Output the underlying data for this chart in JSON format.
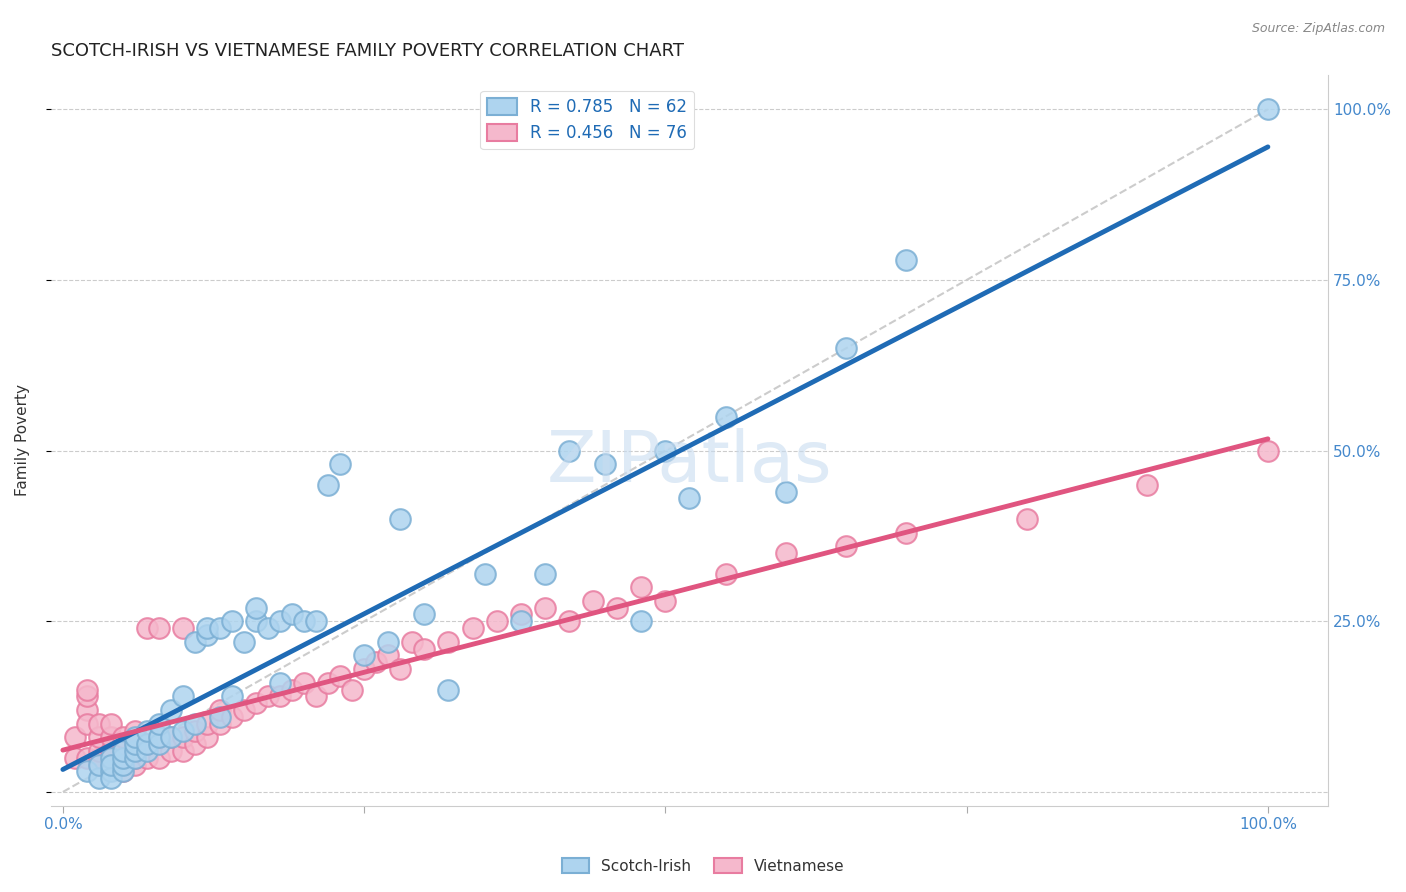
{
  "title": "SCOTCH-IRISH VS VIETNAMESE FAMILY POVERTY CORRELATION CHART",
  "source": "Source: ZipAtlas.com",
  "ylabel": "Family Poverty",
  "xlim": [
    0,
    1
  ],
  "ylim": [
    0,
    1
  ],
  "watermark": "ZIPatlas",
  "scotch_irish_color": "#7BAFD4",
  "scotch_irish_fill": "#AED4EF",
  "vietnamese_color": "#E87CA0",
  "vietnamese_fill": "#F5B8CC",
  "R_scotch": 0.785,
  "N_scotch": 62,
  "R_vietnamese": 0.456,
  "N_vietnamese": 76,
  "scotch_irish_x": [
    0.02,
    0.03,
    0.03,
    0.04,
    0.04,
    0.04,
    0.04,
    0.05,
    0.05,
    0.05,
    0.05,
    0.06,
    0.06,
    0.06,
    0.06,
    0.07,
    0.07,
    0.07,
    0.08,
    0.08,
    0.08,
    0.09,
    0.09,
    0.1,
    0.1,
    0.11,
    0.11,
    0.12,
    0.12,
    0.13,
    0.13,
    0.14,
    0.14,
    0.15,
    0.16,
    0.16,
    0.17,
    0.18,
    0.18,
    0.19,
    0.2,
    0.21,
    0.22,
    0.23,
    0.25,
    0.27,
    0.28,
    0.3,
    0.32,
    0.35,
    0.38,
    0.4,
    0.42,
    0.45,
    0.48,
    0.5,
    0.52,
    0.55,
    0.6,
    0.65,
    0.7,
    1.0
  ],
  "scotch_irish_y": [
    0.03,
    0.02,
    0.04,
    0.03,
    0.05,
    0.02,
    0.04,
    0.03,
    0.04,
    0.05,
    0.06,
    0.05,
    0.06,
    0.07,
    0.08,
    0.06,
    0.07,
    0.09,
    0.07,
    0.08,
    0.1,
    0.08,
    0.12,
    0.09,
    0.14,
    0.1,
    0.22,
    0.23,
    0.24,
    0.11,
    0.24,
    0.14,
    0.25,
    0.22,
    0.25,
    0.27,
    0.24,
    0.25,
    0.16,
    0.26,
    0.25,
    0.25,
    0.45,
    0.48,
    0.2,
    0.22,
    0.4,
    0.26,
    0.15,
    0.32,
    0.25,
    0.32,
    0.5,
    0.48,
    0.25,
    0.5,
    0.43,
    0.55,
    0.44,
    0.65,
    0.78,
    1.0
  ],
  "vietnamese_x": [
    0.01,
    0.01,
    0.02,
    0.02,
    0.02,
    0.02,
    0.02,
    0.03,
    0.03,
    0.03,
    0.03,
    0.03,
    0.04,
    0.04,
    0.04,
    0.04,
    0.04,
    0.05,
    0.05,
    0.05,
    0.05,
    0.06,
    0.06,
    0.06,
    0.06,
    0.07,
    0.07,
    0.07,
    0.08,
    0.08,
    0.08,
    0.09,
    0.09,
    0.1,
    0.1,
    0.1,
    0.11,
    0.11,
    0.12,
    0.12,
    0.13,
    0.13,
    0.14,
    0.15,
    0.16,
    0.17,
    0.18,
    0.19,
    0.2,
    0.21,
    0.22,
    0.23,
    0.24,
    0.25,
    0.26,
    0.27,
    0.28,
    0.29,
    0.3,
    0.32,
    0.34,
    0.36,
    0.38,
    0.4,
    0.42,
    0.44,
    0.46,
    0.48,
    0.5,
    0.55,
    0.6,
    0.65,
    0.7,
    0.8,
    0.9,
    1.0
  ],
  "vietnamese_y": [
    0.05,
    0.08,
    0.12,
    0.14,
    0.15,
    0.05,
    0.1,
    0.04,
    0.05,
    0.06,
    0.08,
    0.1,
    0.04,
    0.05,
    0.06,
    0.08,
    0.1,
    0.03,
    0.05,
    0.07,
    0.08,
    0.04,
    0.05,
    0.07,
    0.09,
    0.05,
    0.07,
    0.24,
    0.05,
    0.08,
    0.24,
    0.06,
    0.08,
    0.06,
    0.08,
    0.24,
    0.07,
    0.09,
    0.08,
    0.1,
    0.1,
    0.12,
    0.11,
    0.12,
    0.13,
    0.14,
    0.14,
    0.15,
    0.16,
    0.14,
    0.16,
    0.17,
    0.15,
    0.18,
    0.19,
    0.2,
    0.18,
    0.22,
    0.21,
    0.22,
    0.24,
    0.25,
    0.26,
    0.27,
    0.25,
    0.28,
    0.27,
    0.3,
    0.28,
    0.32,
    0.35,
    0.36,
    0.38,
    0.4,
    0.45,
    0.5
  ]
}
